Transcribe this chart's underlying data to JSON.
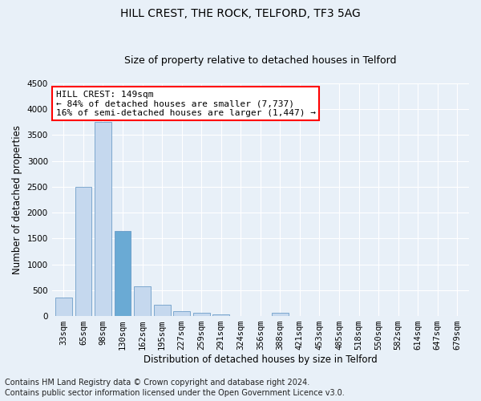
{
  "title1": "HILL CREST, THE ROCK, TELFORD, TF3 5AG",
  "title2": "Size of property relative to detached houses in Telford",
  "xlabel": "Distribution of detached houses by size in Telford",
  "ylabel": "Number of detached properties",
  "categories": [
    "33sqm",
    "65sqm",
    "98sqm",
    "130sqm",
    "162sqm",
    "195sqm",
    "227sqm",
    "259sqm",
    "291sqm",
    "324sqm",
    "356sqm",
    "388sqm",
    "421sqm",
    "453sqm",
    "485sqm",
    "518sqm",
    "550sqm",
    "582sqm",
    "614sqm",
    "647sqm",
    "679sqm"
  ],
  "values": [
    360,
    2500,
    3750,
    1650,
    580,
    220,
    100,
    60,
    40,
    0,
    0,
    60,
    0,
    0,
    0,
    0,
    0,
    0,
    0,
    0,
    0
  ],
  "bar_color_normal": "#c5d8ee",
  "bar_color_highlight": "#6aaad4",
  "highlight_index": 3,
  "ylim": [
    0,
    4500
  ],
  "yticks": [
    0,
    500,
    1000,
    1500,
    2000,
    2500,
    3000,
    3500,
    4000,
    4500
  ],
  "annotation_title": "HILL CREST: 149sqm",
  "annotation_line2": "← 84% of detached houses are smaller (7,737)",
  "annotation_line3": "16% of semi-detached houses are larger (1,447) →",
  "footer_line1": "Contains HM Land Registry data © Crown copyright and database right 2024.",
  "footer_line2": "Contains public sector information licensed under the Open Government Licence v3.0.",
  "bg_color": "#e8f0f8",
  "grid_color": "#ffffff",
  "title_fontsize": 10,
  "subtitle_fontsize": 9,
  "axis_label_fontsize": 8.5,
  "tick_fontsize": 7.5,
  "footer_fontsize": 7,
  "annotation_fontsize": 8
}
